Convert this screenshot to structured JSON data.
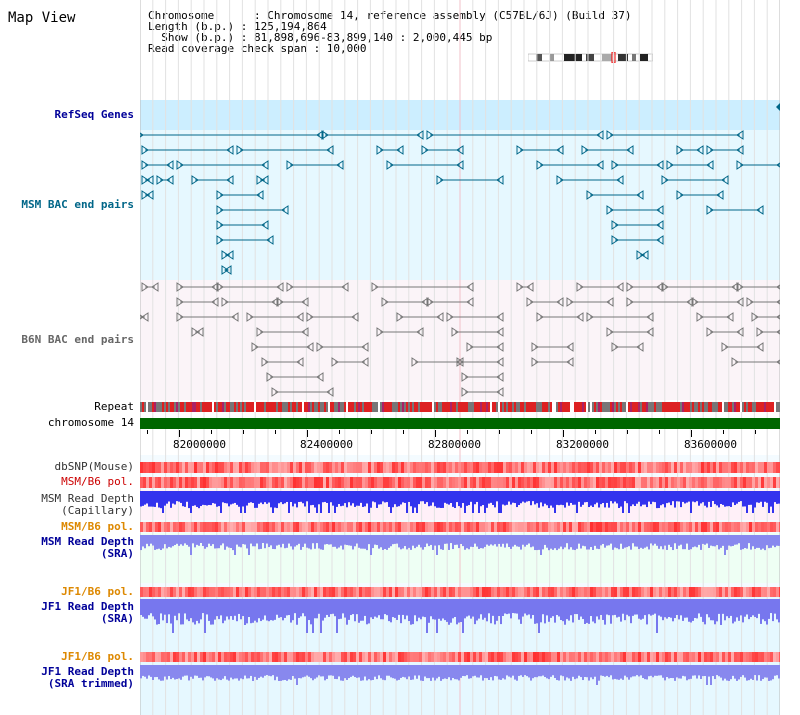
{
  "title": "Map View",
  "info": {
    "line1": "Chromosome      : Chromosome 14, reference assembly (C57BL/6J) (Build 37)",
    "line2": "Length (b.p.) : 125,194,864",
    "line3": "  Show (b.p.) : 81,898,696-83,899,140 : 2,000,445 bp",
    "line4": "Read coverage check span : 10,000"
  },
  "labels": {
    "refseq": "RefSeq Genes",
    "msm_bac": "MSM BAC end pairs",
    "b6n_bac": "B6N BAC end pairs",
    "repeat": "Repeat",
    "chrom": "chromosome 14",
    "dbsnp": "dbSNP(Mouse)",
    "msm_b6_pol": "MSM/B6 pol.",
    "msm_depth_cap": "MSM Read Depth\n(Capillary)",
    "msm_b6_pol2": "MSM/B6 pol.",
    "msm_depth_sra": "MSM Read Depth\n(SRA)",
    "jf1_b6_pol": "JF1/B6 pol.",
    "jf1_depth_sra": "JF1 Read Depth\n(SRA)",
    "jf1_b6_pol2": "JF1/B6 pol.",
    "jf1_depth_trim": "JF1 Read Depth\n(SRA trimmed)"
  },
  "axis": {
    "ticks": [
      "82000000",
      "82400000",
      "82800000",
      "83200000",
      "83600000"
    ]
  },
  "colors": {
    "refseq_label": "#000099",
    "msm_bac_label": "#006688",
    "b6n_bac_label": "#555555",
    "pol_label_red": "#cc0000",
    "pol_label_orange": "#dd8800",
    "depth_label": "#000099",
    "chrom_bar": "#006600",
    "refseq_bg": "#cceeff",
    "msm_bg": "#e6f8ff",
    "b6n_bg": "#fff4f8",
    "cap_bg": "#fff0f8",
    "sra_bg": "#eefff4",
    "jf1_bg": "#e6f8ff"
  }
}
